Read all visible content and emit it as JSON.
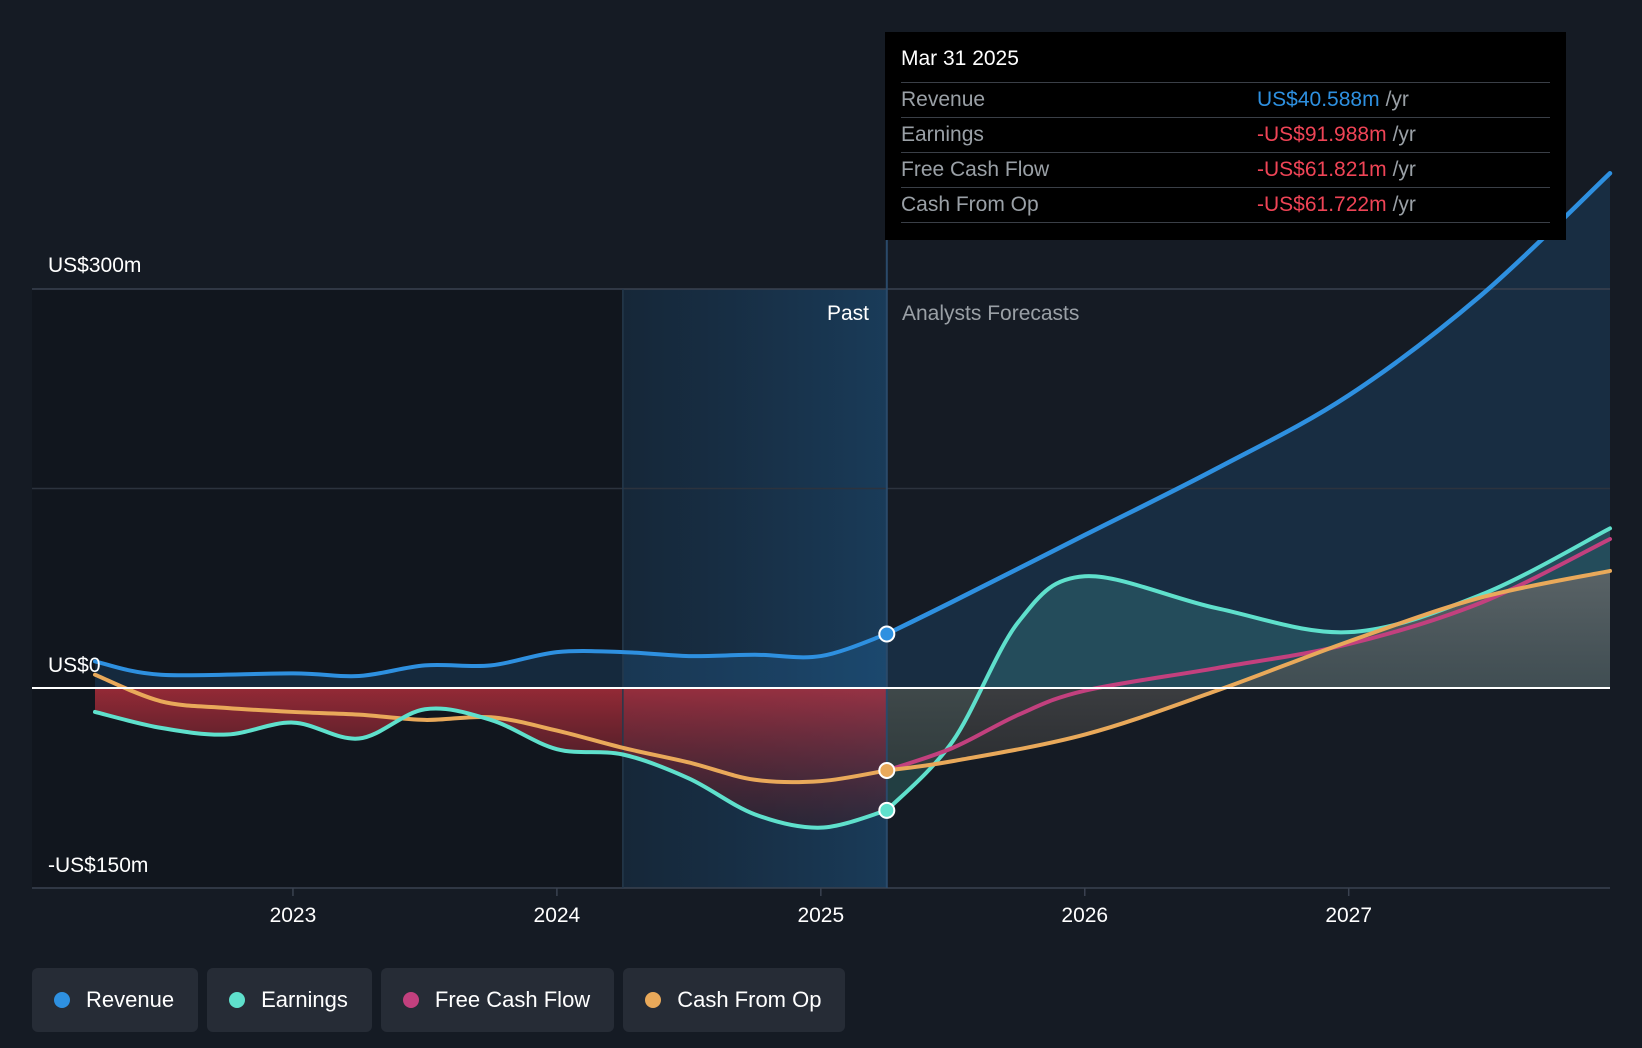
{
  "tooltip": {
    "date": "Mar 31 2025",
    "rows": [
      {
        "label": "Revenue",
        "value": "US$40.588m",
        "unit": "/yr",
        "color": "#2e90e0"
      },
      {
        "label": "Earnings",
        "value": "-US$91.988m",
        "unit": "/yr",
        "color": "#ef4456"
      },
      {
        "label": "Free Cash Flow",
        "value": "-US$61.821m",
        "unit": "/yr",
        "color": "#ef4456"
      },
      {
        "label": "Cash From Op",
        "value": "-US$61.722m",
        "unit": "/yr",
        "color": "#ef4456"
      }
    ]
  },
  "chart_data": {
    "type": "line",
    "y_axis_labels": [
      "US$300m",
      "US$0",
      "-US$150m"
    ],
    "ylim": [
      -150,
      300
    ],
    "xlim": [
      2022.25,
      2027.99
    ],
    "x_ticks": [
      2023,
      2024,
      2025,
      2026,
      2027
    ],
    "x_tick_labels": [
      "2023",
      "2024",
      "2025",
      "2026",
      "2027"
    ],
    "past_label": "Past",
    "forecast_label": "Analysts Forecasts",
    "past_band_start": 2024.25,
    "divider_x": 2025.25,
    "series": [
      {
        "name": "Revenue",
        "color": "#2e90e0",
        "past": [
          [
            2022.25,
            20
          ],
          [
            2022.5,
            10
          ],
          [
            2023.0,
            11
          ],
          [
            2023.25,
            9
          ],
          [
            2023.5,
            17
          ],
          [
            2023.75,
            17
          ],
          [
            2024.0,
            27
          ],
          [
            2024.25,
            27
          ],
          [
            2024.5,
            24
          ],
          [
            2024.75,
            25
          ],
          [
            2025.0,
            24
          ],
          [
            2025.25,
            40.6
          ]
        ],
        "forecast": [
          [
            2025.25,
            40.6
          ],
          [
            2025.5,
            65
          ],
          [
            2026.0,
            115
          ],
          [
            2026.5,
            165
          ],
          [
            2027.0,
            220
          ],
          [
            2027.5,
            295
          ],
          [
            2027.99,
            387
          ]
        ]
      },
      {
        "name": "Earnings",
        "color": "#5fe0cc",
        "past": [
          [
            2022.25,
            -18
          ],
          [
            2022.5,
            -30
          ],
          [
            2022.75,
            -35
          ],
          [
            2023.0,
            -26
          ],
          [
            2023.25,
            -38
          ],
          [
            2023.5,
            -16
          ],
          [
            2023.75,
            -24
          ],
          [
            2024.0,
            -46
          ],
          [
            2024.25,
            -50
          ],
          [
            2024.5,
            -68
          ],
          [
            2024.75,
            -95
          ],
          [
            2025.0,
            -105
          ],
          [
            2025.25,
            -92
          ]
        ],
        "forecast": [
          [
            2025.25,
            -92
          ],
          [
            2025.5,
            -40
          ],
          [
            2025.75,
            50
          ],
          [
            2026.0,
            84
          ],
          [
            2026.5,
            60
          ],
          [
            2027.0,
            42
          ],
          [
            2027.5,
            70
          ],
          [
            2027.99,
            120
          ]
        ]
      },
      {
        "name": "Free Cash Flow",
        "color": "#c2407e",
        "past": [],
        "forecast": [
          [
            2025.25,
            -62
          ],
          [
            2025.5,
            -45
          ],
          [
            2025.75,
            -20
          ],
          [
            2026.0,
            -2
          ],
          [
            2026.5,
            15
          ],
          [
            2027.0,
            33
          ],
          [
            2027.5,
            64
          ],
          [
            2027.99,
            112
          ]
        ]
      },
      {
        "name": "Cash From Op",
        "color": "#e9a95a",
        "past": [
          [
            2022.25,
            10
          ],
          [
            2022.5,
            -10
          ],
          [
            2022.75,
            -15
          ],
          [
            2023.0,
            -18
          ],
          [
            2023.25,
            -20
          ],
          [
            2023.5,
            -24
          ],
          [
            2023.75,
            -22
          ],
          [
            2024.0,
            -32
          ],
          [
            2024.25,
            -45
          ],
          [
            2024.5,
            -56
          ],
          [
            2024.75,
            -69
          ],
          [
            2025.0,
            -70
          ],
          [
            2025.25,
            -62
          ]
        ],
        "forecast": [
          [
            2025.25,
            -62
          ],
          [
            2025.5,
            -55
          ],
          [
            2026.0,
            -35
          ],
          [
            2026.5,
            -2
          ],
          [
            2027.0,
            35
          ],
          [
            2027.5,
            68
          ],
          [
            2027.99,
            88
          ]
        ]
      }
    ]
  },
  "legend": [
    {
      "label": "Revenue",
      "color": "#2e90e0"
    },
    {
      "label": "Earnings",
      "color": "#5fe0cc"
    },
    {
      "label": "Free Cash Flow",
      "color": "#c2407e"
    },
    {
      "label": "Cash From Op",
      "color": "#e9a95a"
    }
  ]
}
